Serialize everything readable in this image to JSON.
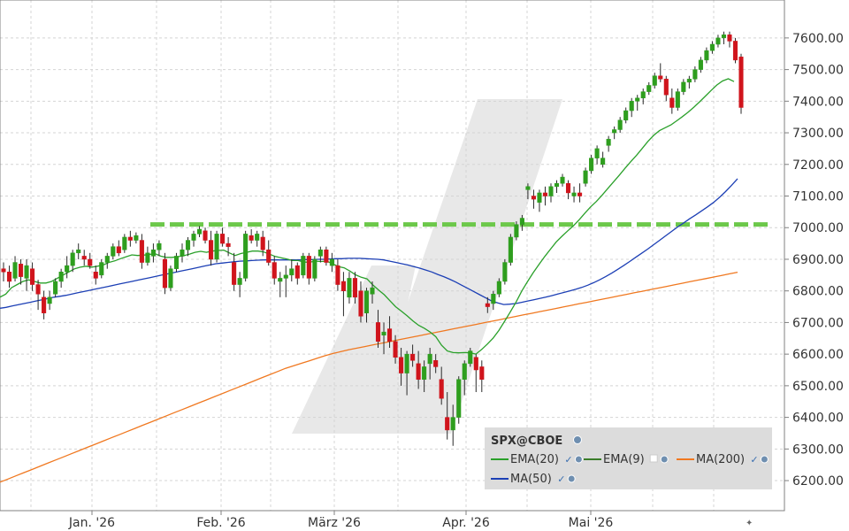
{
  "chart_data": {
    "type": "candlestick",
    "symbol": "SPX@CBOE",
    "x_ticks": [
      "Jan. '26",
      "Feb. '26",
      "März '26",
      "Apr. '26",
      "Mai '26"
    ],
    "y_ticks": [
      "6200.00",
      "6300.00",
      "6400.00",
      "6500.00",
      "6600.00",
      "6700.00",
      "6800.00",
      "6900.00",
      "7000.00",
      "7100.00",
      "7200.00",
      "7300.00",
      "7400.00",
      "7500.00",
      "7600.00"
    ],
    "ylim": [
      6105,
      7720
    ],
    "grid": true,
    "legend_position": "bottom-right",
    "reference_level": 7010,
    "colors": {
      "up": "#2e9e1e",
      "down": "#d0141c",
      "ema20": "#2aa02a",
      "ema9": "#3a7d2a",
      "ma200": "#f07820",
      "ma50": "#1c3fb5",
      "reference": "#6cc84a",
      "watermark": "#e8e8e8",
      "legend_bg": "#dcdcdc"
    },
    "legend": [
      {
        "label": "EMA(20)",
        "color": "#2aa02a",
        "checked": true
      },
      {
        "label": "EMA(9)",
        "color": "#3a7d2a",
        "checked": false
      },
      {
        "label": "MA(200)",
        "color": "#f07820",
        "checked": true
      },
      {
        "label": "MA(50)",
        "color": "#1c3fb5",
        "checked": true
      }
    ],
    "candles": [
      [
        6870,
        6890,
        6830,
        6860
      ],
      [
        6860,
        6880,
        6810,
        6830
      ],
      [
        6840,
        6910,
        6830,
        6890
      ],
      [
        6885,
        6900,
        6820,
        6845
      ],
      [
        6840,
        6900,
        6800,
        6880
      ],
      [
        6870,
        6890,
        6800,
        6820
      ],
      [
        6820,
        6835,
        6740,
        6790
      ],
      [
        6780,
        6800,
        6710,
        6730
      ],
      [
        6760,
        6800,
        6740,
        6780
      ],
      [
        6790,
        6840,
        6780,
        6830
      ],
      [
        6830,
        6870,
        6810,
        6860
      ],
      [
        6860,
        6910,
        6840,
        6880
      ],
      [
        6880,
        6930,
        6860,
        6920
      ],
      [
        6920,
        6950,
        6900,
        6930
      ],
      [
        6910,
        6930,
        6880,
        6900
      ],
      [
        6900,
        6920,
        6870,
        6880
      ],
      [
        6860,
        6880,
        6820,
        6840
      ],
      [
        6850,
        6900,
        6840,
        6890
      ],
      [
        6890,
        6920,
        6870,
        6910
      ],
      [
        6910,
        6950,
        6900,
        6940
      ],
      [
        6940,
        6960,
        6910,
        6920
      ],
      [
        6930,
        6980,
        6920,
        6970
      ],
      [
        6970,
        6990,
        6940,
        6960
      ],
      [
        6960,
        6985,
        6950,
        6975
      ],
      [
        6960,
        6980,
        6870,
        6890
      ],
      [
        6890,
        6940,
        6880,
        6920
      ],
      [
        6910,
        6950,
        6890,
        6930
      ],
      [
        6930,
        6960,
        6910,
        6950
      ],
      [
        6900,
        6920,
        6790,
        6810
      ],
      [
        6810,
        6880,
        6800,
        6870
      ],
      [
        6870,
        6920,
        6860,
        6910
      ],
      [
        6910,
        6950,
        6890,
        6930
      ],
      [
        6930,
        6970,
        6910,
        6960
      ],
      [
        6960,
        6990,
        6940,
        6980
      ],
      [
        6980,
        7005,
        6970,
        6995
      ],
      [
        6990,
        7000,
        6950,
        6960
      ],
      [
        6960,
        6990,
        6880,
        6900
      ],
      [
        6900,
        6990,
        6890,
        6980
      ],
      [
        6980,
        7000,
        6940,
        6950
      ],
      [
        6950,
        6970,
        6910,
        6940
      ],
      [
        6890,
        6920,
        6800,
        6820
      ],
      [
        6820,
        6860,
        6780,
        6840
      ],
      [
        6840,
        6990,
        6830,
        6980
      ],
      [
        6975,
        6995,
        6950,
        6960
      ],
      [
        6960,
        6990,
        6940,
        6980
      ],
      [
        6970,
        6990,
        6910,
        6930
      ],
      [
        6930,
        6960,
        6880,
        6890
      ],
      [
        6890,
        6910,
        6820,
        6840
      ],
      [
        6830,
        6860,
        6780,
        6840
      ],
      [
        6840,
        6880,
        6780,
        6850
      ],
      [
        6850,
        6900,
        6830,
        6870
      ],
      [
        6880,
        6890,
        6820,
        6840
      ],
      [
        6850,
        6920,
        6840,
        6910
      ],
      [
        6910,
        6920,
        6820,
        6840
      ],
      [
        6840,
        6910,
        6830,
        6900
      ],
      [
        6910,
        6940,
        6890,
        6930
      ],
      [
        6930,
        6940,
        6880,
        6890
      ],
      [
        6880,
        6920,
        6860,
        6900
      ],
      [
        6880,
        6900,
        6800,
        6820
      ],
      [
        6830,
        6860,
        6720,
        6800
      ],
      [
        6780,
        6860,
        6760,
        6840
      ],
      [
        6840,
        6860,
        6760,
        6780
      ],
      [
        6800,
        6830,
        6700,
        6720
      ],
      [
        6730,
        6810,
        6700,
        6800
      ],
      [
        6790,
        6830,
        6760,
        6810
      ],
      [
        6700,
        6740,
        6620,
        6640
      ],
      [
        6660,
        6700,
        6600,
        6670
      ],
      [
        6680,
        6720,
        6620,
        6640
      ],
      [
        6640,
        6660,
        6570,
        6590
      ],
      [
        6590,
        6620,
        6500,
        6540
      ],
      [
        6540,
        6610,
        6470,
        6600
      ],
      [
        6600,
        6630,
        6560,
        6580
      ],
      [
        6570,
        6610,
        6490,
        6520
      ],
      [
        6520,
        6580,
        6480,
        6560
      ],
      [
        6570,
        6620,
        6520,
        6600
      ],
      [
        6580,
        6600,
        6540,
        6560
      ],
      [
        6520,
        6560,
        6440,
        6460
      ],
      [
        6400,
        6480,
        6330,
        6360
      ],
      [
        6360,
        6440,
        6310,
        6400
      ],
      [
        6400,
        6530,
        6380,
        6520
      ],
      [
        6520,
        6580,
        6470,
        6570
      ],
      [
        6570,
        6620,
        6560,
        6610
      ],
      [
        6590,
        6600,
        6480,
        6550
      ],
      [
        6560,
        6580,
        6480,
        6520
      ],
      [
        6760,
        6780,
        6730,
        6750
      ],
      [
        6760,
        6800,
        6740,
        6790
      ],
      [
        6790,
        6840,
        6780,
        6830
      ],
      [
        6830,
        6900,
        6820,
        6890
      ],
      [
        6890,
        6980,
        6880,
        6970
      ],
      [
        6970,
        7020,
        6960,
        7010
      ],
      [
        7010,
        7040,
        6990,
        7030
      ],
      [
        7120,
        7140,
        7090,
        7130
      ],
      [
        7100,
        7120,
        7060,
        7090
      ],
      [
        7080,
        7120,
        7050,
        7110
      ],
      [
        7110,
        7130,
        7070,
        7100
      ],
      [
        7100,
        7140,
        7080,
        7130
      ],
      [
        7130,
        7150,
        7110,
        7140
      ],
      [
        7140,
        7170,
        7130,
        7160
      ],
      [
        7140,
        7150,
        7090,
        7110
      ],
      [
        7100,
        7130,
        7080,
        7110
      ],
      [
        7110,
        7140,
        7080,
        7100
      ],
      [
        7140,
        7190,
        7130,
        7180
      ],
      [
        7180,
        7230,
        7170,
        7220
      ],
      [
        7220,
        7260,
        7200,
        7250
      ],
      [
        7200,
        7240,
        7190,
        7220
      ],
      [
        7260,
        7290,
        7240,
        7280
      ],
      [
        7300,
        7320,
        7280,
        7310
      ],
      [
        7310,
        7350,
        7300,
        7340
      ],
      [
        7340,
        7380,
        7330,
        7370
      ],
      [
        7370,
        7410,
        7350,
        7400
      ],
      [
        7400,
        7420,
        7370,
        7410
      ],
      [
        7410,
        7440,
        7390,
        7430
      ],
      [
        7430,
        7460,
        7420,
        7450
      ],
      [
        7450,
        7490,
        7440,
        7480
      ],
      [
        7480,
        7520,
        7460,
        7470
      ],
      [
        7470,
        7480,
        7400,
        7420
      ],
      [
        7410,
        7440,
        7360,
        7380
      ],
      [
        7380,
        7440,
        7370,
        7430
      ],
      [
        7430,
        7470,
        7420,
        7460
      ],
      [
        7460,
        7480,
        7440,
        7470
      ],
      [
        7470,
        7510,
        7460,
        7500
      ],
      [
        7500,
        7540,
        7490,
        7530
      ],
      [
        7530,
        7570,
        7520,
        7560
      ],
      [
        7560,
        7590,
        7550,
        7580
      ],
      [
        7580,
        7610,
        7570,
        7600
      ],
      [
        7600,
        7620,
        7580,
        7610
      ],
      [
        7610,
        7620,
        7570,
        7590
      ],
      [
        7590,
        7600,
        7520,
        7530
      ],
      [
        7540,
        7550,
        7360,
        7380
      ]
    ],
    "ema20": [
      [
        6780,
        6790,
        6810,
        6820,
        6830,
        6835,
        6830,
        6825,
        6825,
        6830,
        6840,
        6850,
        6860,
        6870,
        6875,
        6878,
        6875,
        6878,
        6882,
        6890,
        6895,
        6902,
        6908,
        6914,
        6912,
        6913,
        6915,
        6918,
        6910,
        6906,
        6906,
        6908,
        6911,
        6916,
        6922,
        6925,
        6922,
        6926,
        6928,
        6929,
        6920,
        6912,
        6918,
        6922,
        6926,
        6926,
        6923,
        6916,
        6909,
        6905,
        6901,
        6896,
        6896,
        6891,
        6891,
        6894,
        6893,
        6894,
        6886,
        6877,
        6873,
        6863,
        6851,
        6843,
        6838,
        6819,
        6803,
        6788,
        6769,
        6750,
        6736,
        6721,
        6705,
        6691,
        6682,
        6670,
        6655,
        6628,
        6610,
        6605,
        6604,
        6605,
        6604,
        6600,
        6615,
        6632,
        6651,
        6675,
        6704,
        6734,
        6765,
        6800,
        6830,
        6858,
        6884,
        6909,
        6932,
        6955,
        6973,
        6990,
        7006,
        7025,
        7046,
        7066,
        7083,
        7103,
        7124,
        7145,
        7166,
        7188,
        7209,
        7229,
        7251,
        7273,
        7292,
        7307,
        7316,
        7325,
        7338,
        7351,
        7365,
        7381,
        7398,
        7416,
        7434,
        7451,
        7464,
        7471,
        7462
      ]
    ],
    "ma50": [
      6745,
      6748,
      6752,
      6756,
      6760,
      6764,
      6768,
      6772,
      6776,
      6780,
      6783,
      6786,
      6790,
      6794,
      6798,
      6802,
      6806,
      6810,
      6814,
      6818,
      6822,
      6826,
      6830,
      6834,
      6838,
      6842,
      6846,
      6850,
      6854,
      6858,
      6862,
      6866,
      6870,
      6874,
      6878,
      6882,
      6886,
      6888,
      6890,
      6892,
      6894,
      6895,
      6896,
      6897,
      6898,
      6898,
      6898,
      6898,
      6898,
      6898,
      6898,
      6899,
      6899,
      6900,
      6900,
      6901,
      6902,
      6902,
      6903,
      6903,
      6903,
      6902,
      6901,
      6900,
      6898,
      6894,
      6890,
      6886,
      6882,
      6877,
      6872,
      6866,
      6860,
      6852,
      6845,
      6837,
      6828,
      6818,
      6808,
      6798,
      6788,
      6778,
      6768,
      6762,
      6757,
      6758,
      6760,
      6764,
      6768,
      6772,
      6776,
      6780,
      6785,
      6790,
      6795,
      6800,
      6805,
      6811,
      6818,
      6826,
      6835,
      6845,
      6856,
      6868,
      6880,
      6893,
      6906,
      6919,
      6932,
      6946,
      6960,
      6974,
      6988,
      7002,
      7015,
      7028,
      7040,
      7053,
      7066,
      7080,
      7096,
      7114,
      7134,
      7155
    ],
    "ma200": [
      6195,
      6205,
      6215,
      6225,
      6235,
      6245,
      6255,
      6265,
      6275,
      6285,
      6295,
      6305,
      6315,
      6325,
      6335,
      6345,
      6355,
      6365,
      6375,
      6385,
      6395,
      6405,
      6415,
      6425,
      6435,
      6445,
      6455,
      6465,
      6475,
      6485,
      6495,
      6505,
      6515,
      6525,
      6535,
      6545,
      6555,
      6563,
      6571,
      6579,
      6587,
      6595,
      6602,
      6608,
      6614,
      6619,
      6624,
      6629,
      6634,
      6639,
      6644,
      6649,
      6654,
      6659,
      6664,
      6669,
      6674,
      6679,
      6684,
      6689,
      6694,
      6699,
      6704,
      6709,
      6714,
      6719,
      6724,
      6729,
      6734,
      6739,
      6744,
      6749,
      6754,
      6759,
      6764,
      6769,
      6774,
      6779,
      6784,
      6789,
      6794,
      6799,
      6804,
      6809,
      6814,
      6819,
      6824,
      6829,
      6834,
      6839,
      6844,
      6849,
      6854,
      6859
    ]
  }
}
